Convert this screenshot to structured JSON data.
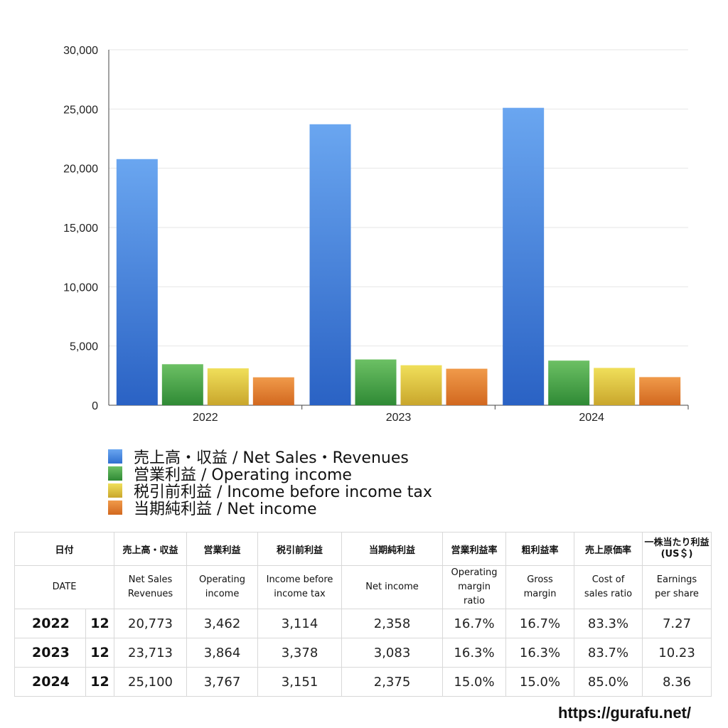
{
  "chart_data": {
    "type": "bar",
    "categories": [
      "2022",
      "2023",
      "2024"
    ],
    "ylim": [
      0,
      30000
    ],
    "yticks": [
      "0",
      "5,000",
      "10,000",
      "15,000",
      "20,000",
      "25,000",
      "30,000"
    ],
    "grid": true,
    "legend_position": "bottom",
    "series": [
      {
        "name": "売上高・収益 / Net Sales・Revenues",
        "values": [
          20773,
          23713,
          25100
        ],
        "color": "#4a8fe0"
      },
      {
        "name": "営業利益 / Operating income",
        "values": [
          3462,
          3864,
          3767
        ],
        "color": "#4fa84a"
      },
      {
        "name": "税引前利益 / Income before income tax",
        "values": [
          3114,
          3378,
          3151
        ],
        "color": "#e0c83c"
      },
      {
        "name": "当期純利益 / Net income",
        "values": [
          2358,
          3083,
          2375
        ],
        "color": "#e07c2c"
      }
    ]
  },
  "table": {
    "headers_jp": [
      "日付",
      "売上高・収益",
      "営業利益",
      "税引前利益",
      "当期純利益",
      "営業利益率",
      "粗利益率",
      "売上原価率",
      "一株当たり利益",
      "(US＄)"
    ],
    "headers_en": {
      "date": "DATE",
      "net_sales_1": "Net Sales",
      "net_sales_2": "Revenues",
      "operating_1": "Operating",
      "operating_2": "income",
      "ibt_1": "Income before",
      "ibt_2": "income tax",
      "net_income": "Net income",
      "opm_1": "Operating",
      "opm_2": "margin",
      "opm_3": "ratio",
      "gross_1": "Gross",
      "gross_2": "margin",
      "cost_1": "Cost of",
      "cost_2": "sales ratio",
      "eps_1": "Earnings",
      "eps_2": "per share"
    },
    "rows": [
      {
        "year": "2022",
        "month": "12",
        "sales": "20,773",
        "op": "3,462",
        "ibt": "3,114",
        "net": "2,358",
        "opm": "16.7%",
        "gross": "16.7%",
        "cost": "83.3%",
        "eps": "7.27"
      },
      {
        "year": "2023",
        "month": "12",
        "sales": "23,713",
        "op": "3,864",
        "ibt": "3,378",
        "net": "3,083",
        "opm": "16.3%",
        "gross": "16.3%",
        "cost": "83.7%",
        "eps": "10.23"
      },
      {
        "year": "2024",
        "month": "12",
        "sales": "25,100",
        "op": "3,767",
        "ibt": "3,151",
        "net": "2,375",
        "opm": "15.0%",
        "gross": "15.0%",
        "cost": "85.0%",
        "eps": "8.36"
      }
    ]
  },
  "footer": {
    "url": "https://gurafu.net/"
  }
}
